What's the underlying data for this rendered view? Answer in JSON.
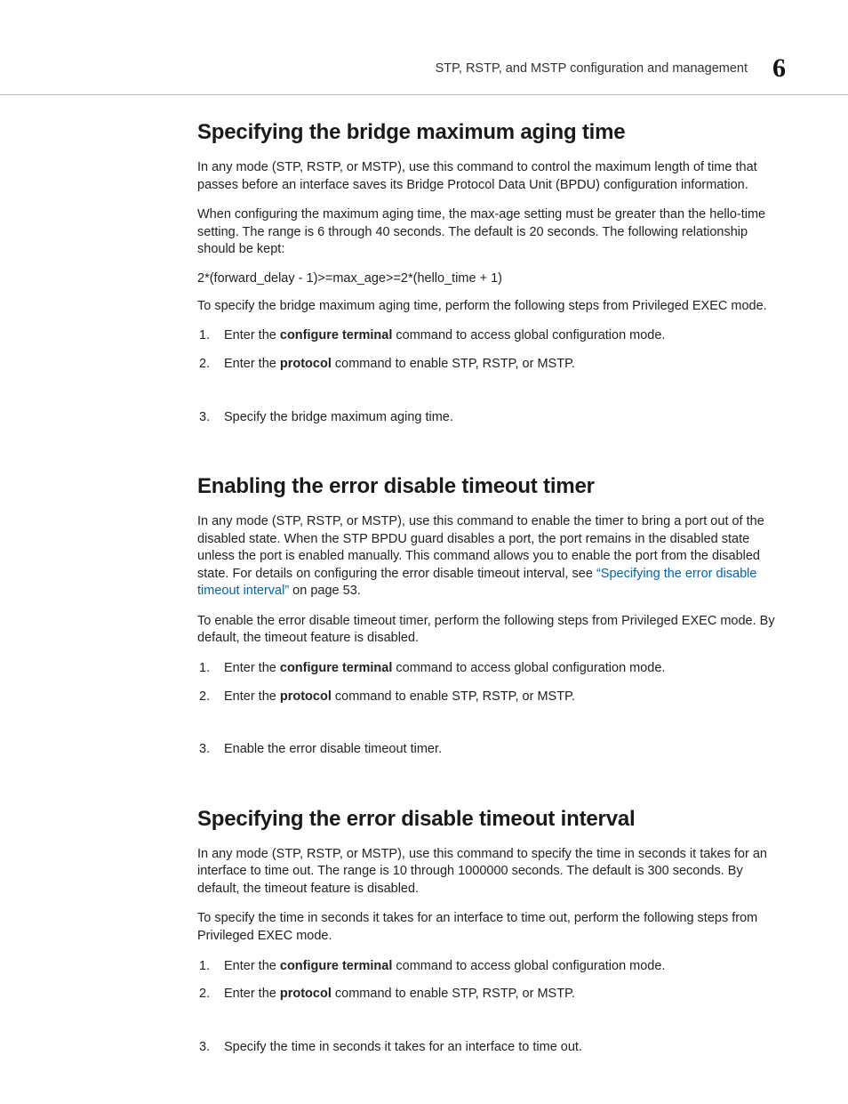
{
  "colors": {
    "text": "#222222",
    "heading": "#1a1a1a",
    "link": "#0066a6",
    "rule": "#bfbfbf",
    "background": "#ffffff"
  },
  "typography": {
    "heading_family": "Helvetica Neue / Arial (condensed)",
    "heading_fontsize_pt": 18,
    "body_family": "Arial / Helvetica",
    "body_fontsize_pt": 11,
    "chapter_number_fontsize_pt": 24
  },
  "header": {
    "title": "STP, RSTP, and MSTP configuration and management",
    "chapter_number": "6"
  },
  "sections": [
    {
      "id": "max-aging",
      "title": "Specifying the bridge maximum aging time",
      "paragraphs": [
        "In any mode (STP, RSTP, or MSTP), use this command to control the maximum length of time that passes before an interface saves its Bridge Protocol Data Unit (BPDU) configuration information.",
        "When configuring the maximum aging time, the max-age setting must be greater than the hello-time setting. The range is 6 through 40 seconds. The default is 20 seconds. The following relationship should be kept:"
      ],
      "formula": "2*(forward_delay - 1)>=max_age>=2*(hello_time + 1)",
      "lead_in": "To specify the bridge maximum aging time, perform the following steps from Privileged EXEC mode.",
      "steps": [
        {
          "prefix": "Enter the ",
          "cmd": "configure terminal",
          "suffix": " command to access global configuration mode."
        },
        {
          "prefix": "Enter the ",
          "cmd": "protocol",
          "suffix": " command to enable STP, RSTP, or MSTP."
        },
        {
          "prefix": "Specify the bridge maximum aging time.",
          "cmd": "",
          "suffix": "",
          "gap_before": true
        }
      ]
    },
    {
      "id": "err-timer",
      "title": "Enabling the error disable timeout timer",
      "paragraphs": [
        "In any mode (STP, RSTP, or MSTP), use this command to enable the timer to bring a port out of the disabled state. When the STP BPDU guard disables a port, the port remains in the disabled state unless the port is enabled manually. This command allows you to enable the port from the disabled state. For details on configuring the error disable timeout interval, see "
      ],
      "xref": {
        "text": "“Specifying the error disable timeout interval”",
        "trailing": " on page 53."
      },
      "lead_in": "To enable the error disable timeout timer, perform the following steps from Privileged EXEC mode. By default, the timeout feature is disabled.",
      "steps": [
        {
          "prefix": "Enter the ",
          "cmd": "configure terminal",
          "suffix": " command to access global configuration mode."
        },
        {
          "prefix": "Enter the ",
          "cmd": "protocol",
          "suffix": " command to enable STP, RSTP, or MSTP."
        },
        {
          "prefix": "Enable the error disable timeout timer.",
          "cmd": "",
          "suffix": "",
          "gap_before": true
        }
      ]
    },
    {
      "id": "err-interval",
      "title": "Specifying the error disable timeout interval",
      "paragraphs": [
        "In any mode (STP, RSTP, or MSTP), use this command to specify the time in seconds it takes for an interface to time out. The range is 10 through 1000000 seconds. The default is 300 seconds. By default, the timeout feature is disabled."
      ],
      "lead_in": "To specify the time in seconds it takes for an interface to time out, perform the following steps from Privileged EXEC mode.",
      "steps": [
        {
          "prefix": "Enter the ",
          "cmd": "configure terminal",
          "suffix": " command to access global configuration mode."
        },
        {
          "prefix": "Enter the ",
          "cmd": "protocol",
          "suffix": " command to enable STP, RSTP, or MSTP."
        },
        {
          "prefix": "Specify the time in seconds it takes for an interface to time out.",
          "cmd": "",
          "suffix": "",
          "gap_before": true
        }
      ]
    }
  ]
}
